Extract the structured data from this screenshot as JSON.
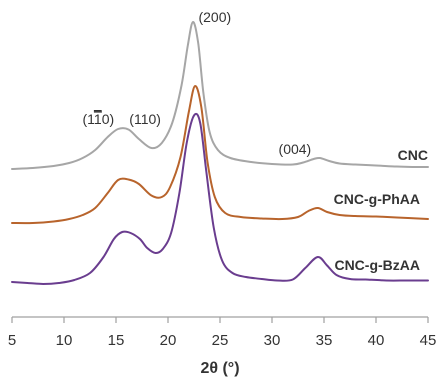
{
  "chart_data": {
    "type": "line",
    "title": "",
    "xlabel": "2θ (°)",
    "ylabel": "",
    "xlim": [
      5,
      45
    ],
    "xticks": [
      5,
      10,
      15,
      20,
      25,
      30,
      35,
      40,
      45
    ],
    "y_axis_shown": false,
    "grid": false,
    "legend": "none (series labeled directly on the curves)",
    "y_units": "intensity, arbitrary units (curves vertically offset)",
    "series": [
      {
        "name": "CNC",
        "color": "#a6a6a6",
        "points": [
          [
            5,
            0.08
          ],
          [
            7,
            0.1
          ],
          [
            9,
            0.14
          ],
          [
            10.5,
            0.2
          ],
          [
            11.8,
            0.3
          ],
          [
            13,
            0.46
          ],
          [
            14.2,
            0.72
          ],
          [
            15.2,
            0.88
          ],
          [
            16.2,
            0.87
          ],
          [
            17.2,
            0.68
          ],
          [
            18.4,
            0.5
          ],
          [
            19.4,
            0.6
          ],
          [
            20.4,
            1.0
          ],
          [
            21.3,
            1.75
          ],
          [
            21.9,
            2.55
          ],
          [
            22.4,
            3.02
          ],
          [
            22.9,
            2.6
          ],
          [
            23.4,
            1.6
          ],
          [
            24,
            0.82
          ],
          [
            24.8,
            0.46
          ],
          [
            26,
            0.3
          ],
          [
            28,
            0.22
          ],
          [
            30,
            0.18
          ],
          [
            32,
            0.17
          ],
          [
            33,
            0.21
          ],
          [
            34,
            0.28
          ],
          [
            34.6,
            0.3
          ],
          [
            35.5,
            0.24
          ],
          [
            36.5,
            0.19
          ],
          [
            38,
            0.17
          ],
          [
            40,
            0.15
          ],
          [
            42,
            0.13
          ],
          [
            43.5,
            0.12
          ],
          [
            45,
            0.12
          ]
        ]
      },
      {
        "name": "CNC-g-PhAA",
        "color": "#b8642c",
        "points": [
          [
            5,
            0.08
          ],
          [
            7,
            0.08
          ],
          [
            9,
            0.11
          ],
          [
            10.5,
            0.16
          ],
          [
            11.8,
            0.24
          ],
          [
            13,
            0.38
          ],
          [
            14.2,
            0.68
          ],
          [
            15.2,
            0.94
          ],
          [
            16.2,
            0.95
          ],
          [
            17.2,
            0.86
          ],
          [
            18.4,
            0.63
          ],
          [
            19.4,
            0.6
          ],
          [
            20.2,
            0.8
          ],
          [
            21.2,
            1.4
          ],
          [
            22,
            2.3
          ],
          [
            22.6,
            2.82
          ],
          [
            23.2,
            2.4
          ],
          [
            23.8,
            1.3
          ],
          [
            24.5,
            0.6
          ],
          [
            25.5,
            0.28
          ],
          [
            27,
            0.2
          ],
          [
            29,
            0.17
          ],
          [
            31,
            0.16
          ],
          [
            32.5,
            0.2
          ],
          [
            33.5,
            0.32
          ],
          [
            34.4,
            0.38
          ],
          [
            35.3,
            0.3
          ],
          [
            36.5,
            0.24
          ],
          [
            38,
            0.22
          ],
          [
            40,
            0.21
          ],
          [
            42,
            0.19
          ],
          [
            45,
            0.16
          ]
        ]
      },
      {
        "name": "CNC-g-BzAA",
        "color": "#6a3d8f",
        "points": [
          [
            5,
            0.12
          ],
          [
            6.5,
            0.1
          ],
          [
            8,
            0.08
          ],
          [
            9.5,
            0.1
          ],
          [
            11,
            0.16
          ],
          [
            12.5,
            0.3
          ],
          [
            13.8,
            0.62
          ],
          [
            14.8,
            0.98
          ],
          [
            15.6,
            1.12
          ],
          [
            16.4,
            1.1
          ],
          [
            17.3,
            0.98
          ],
          [
            18,
            0.8
          ],
          [
            18.8,
            0.7
          ],
          [
            19.5,
            0.78
          ],
          [
            20.3,
            1.1
          ],
          [
            21.1,
            1.9
          ],
          [
            21.8,
            2.9
          ],
          [
            22.5,
            3.45
          ],
          [
            23.1,
            3.3
          ],
          [
            23.7,
            2.3
          ],
          [
            24.4,
            1.2
          ],
          [
            25.2,
            0.55
          ],
          [
            26.2,
            0.3
          ],
          [
            27.5,
            0.22
          ],
          [
            29,
            0.18
          ],
          [
            30.5,
            0.15
          ],
          [
            32,
            0.17
          ],
          [
            33.2,
            0.4
          ],
          [
            34.4,
            0.62
          ],
          [
            35.3,
            0.45
          ],
          [
            36.2,
            0.26
          ],
          [
            37.5,
            0.18
          ],
          [
            39,
            0.17
          ],
          [
            41,
            0.15
          ],
          [
            43,
            0.15
          ],
          [
            45,
            0.15
          ]
        ]
      }
    ],
    "annotations": [
      {
        "text_pre": "(1",
        "text_bar": "1",
        "text_post": "0)",
        "x": 13.3,
        "series": "CNC"
      },
      {
        "text": "(110)",
        "x": 17.8,
        "series": "CNC"
      },
      {
        "text": "(200)",
        "x": 24.5,
        "series": "CNC"
      },
      {
        "text": "(004)",
        "x": 32.2,
        "series": "CNC"
      }
    ]
  }
}
